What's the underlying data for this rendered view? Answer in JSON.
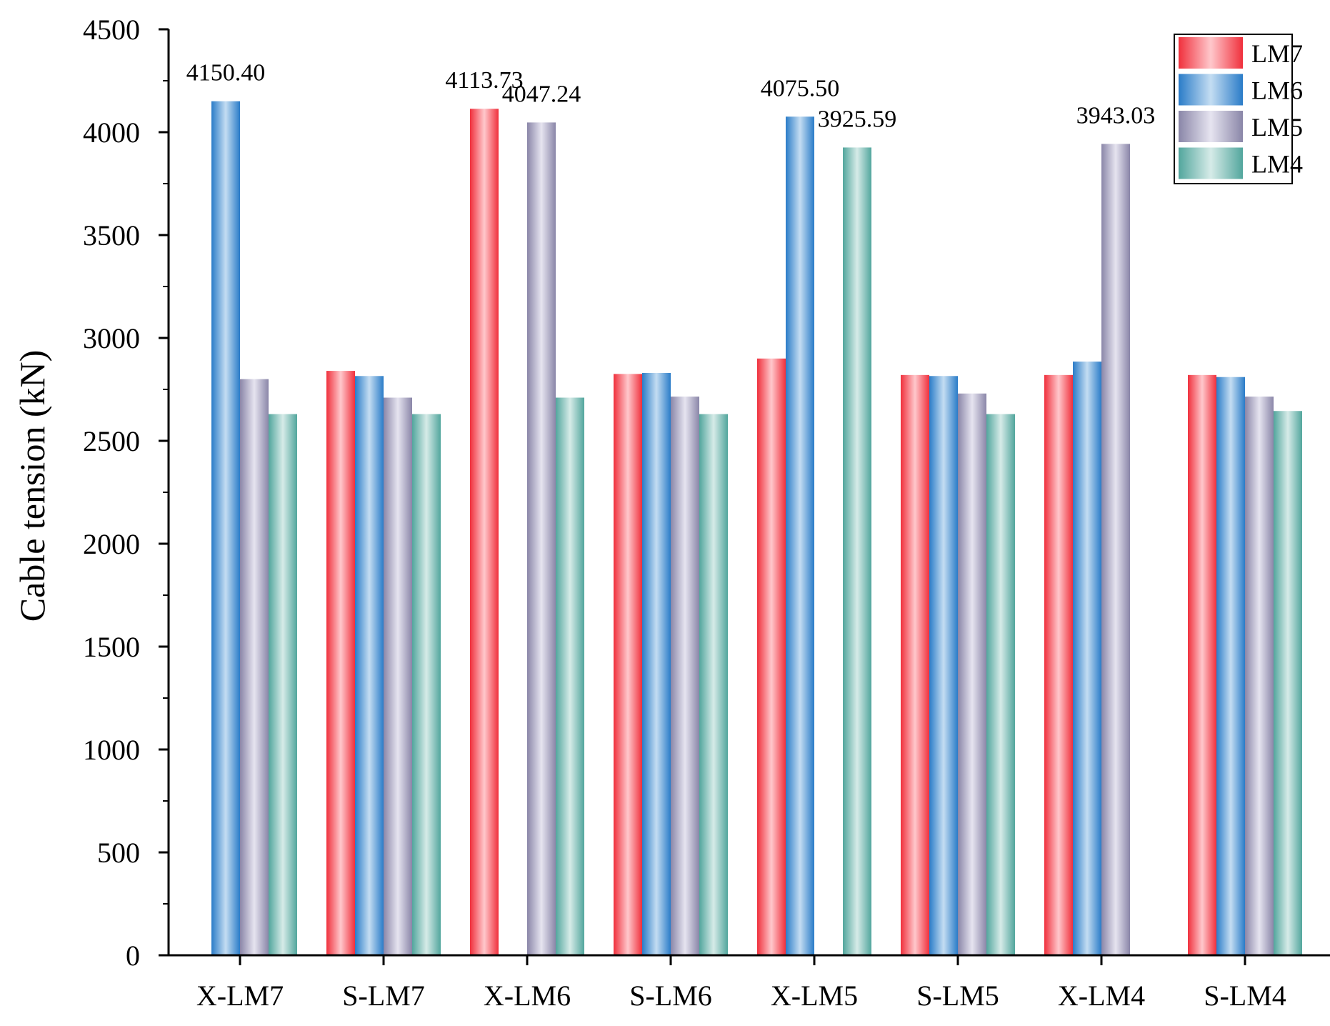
{
  "chart_data": {
    "type": "bar",
    "title": "",
    "xlabel": "",
    "ylabel": "Cable  tension (kN)",
    "ylim": [
      0,
      4500
    ],
    "yticks": [
      0,
      500,
      1000,
      1500,
      2000,
      2500,
      3000,
      3500,
      4000,
      4500
    ],
    "grid": false,
    "legend_position": "top-right",
    "categories": [
      "X-LM7",
      "S-LM7",
      "X-LM6",
      "S-LM6",
      "X-LM5",
      "S-LM5",
      "X-LM4",
      "S-LM4"
    ],
    "series": [
      {
        "name": "LM7",
        "color": "#e8323c",
        "values": [
          0,
          2840,
          4113.73,
          2825,
          2900,
          2820,
          2820,
          2820
        ]
      },
      {
        "name": "LM6",
        "color": "#2f7fc9",
        "values": [
          4150.4,
          2815,
          0,
          2830,
          4075.5,
          2815,
          2885,
          2810
        ]
      },
      {
        "name": "LM5",
        "color": "#8a86a8",
        "values": [
          2800,
          2710,
          4047.24,
          2715,
          0,
          2730,
          3943.03,
          2715
        ]
      },
      {
        "name": "LM4",
        "color": "#5aa8a0",
        "values": [
          2630,
          2630,
          2710,
          2630,
          3925.59,
          2630,
          0,
          2645
        ]
      }
    ],
    "annotations": [
      {
        "category": "X-LM7",
        "series": "LM6",
        "text": "4150.40"
      },
      {
        "category": "X-LM6",
        "series": "LM7",
        "text": "4113.73"
      },
      {
        "category": "X-LM6",
        "series": "LM5",
        "text": "4047.24"
      },
      {
        "category": "X-LM5",
        "series": "LM6",
        "text": "4075.50"
      },
      {
        "category": "X-LM5",
        "series": "LM4",
        "text": "3925.59"
      },
      {
        "category": "X-LM4",
        "series": "LM5",
        "text": "3943.03"
      }
    ]
  }
}
